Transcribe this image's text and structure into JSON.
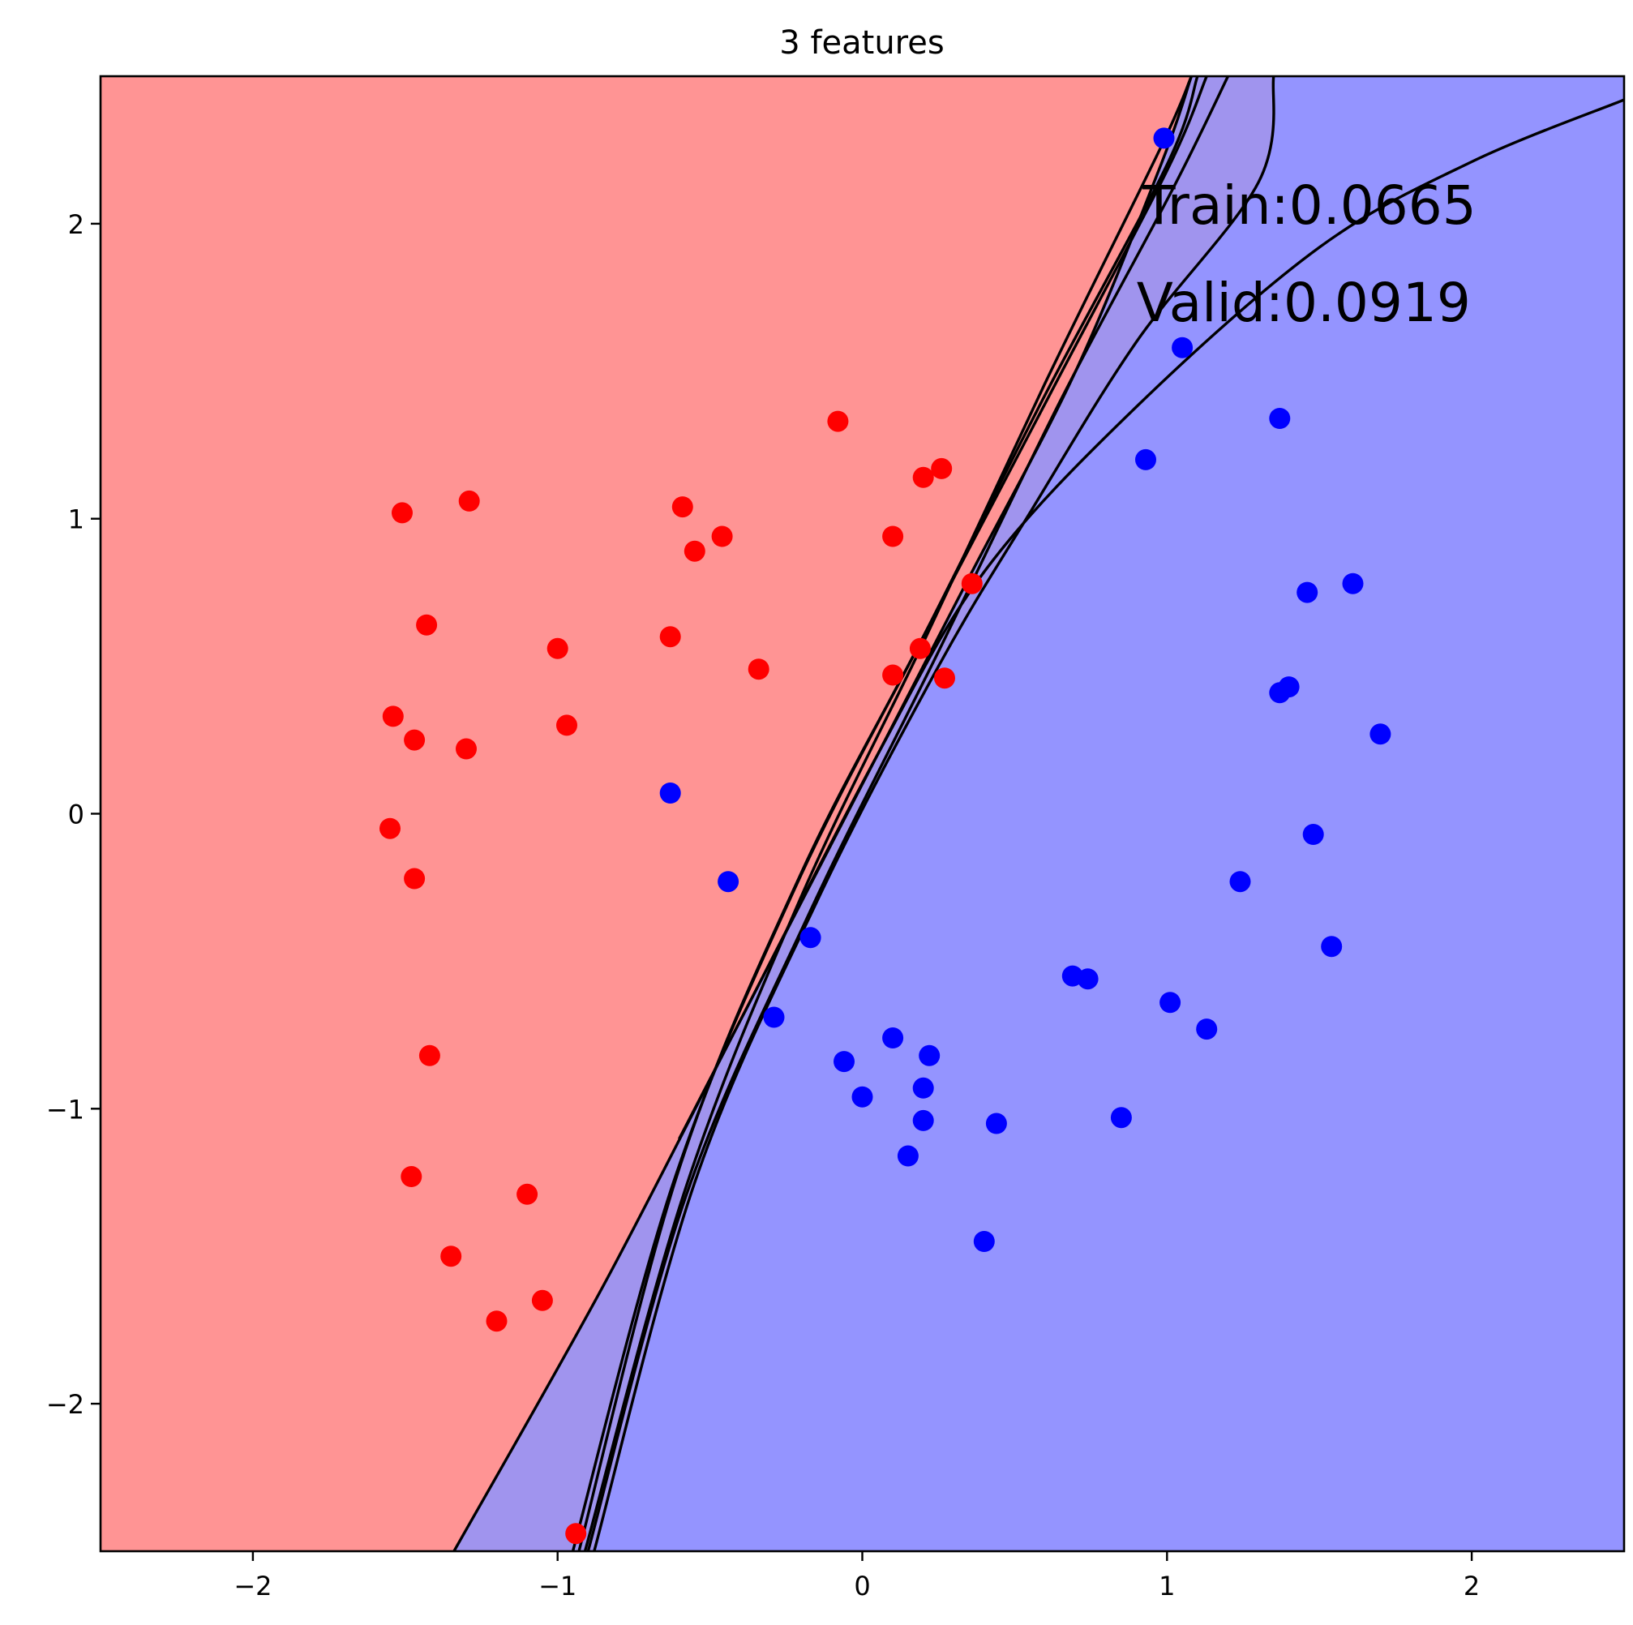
{
  "chart_data": {
    "type": "scatter",
    "title": "3 features",
    "xlabel": "",
    "ylabel": "",
    "xlim": [
      -2.5,
      2.5
    ],
    "ylim": [
      -2.5,
      2.5
    ],
    "grid": false,
    "xticks": [
      -2,
      -1,
      0,
      1,
      2
    ],
    "yticks": [
      -2,
      -1,
      0,
      1,
      2
    ],
    "xtick_labels": [
      "−2",
      "−1",
      "0",
      "1",
      "2"
    ],
    "ytick_labels": [
      "−2",
      "−1",
      "0",
      "1",
      "2"
    ],
    "regions": [
      {
        "name": "red class region",
        "color": "#ff9494"
      },
      {
        "name": "mixed region",
        "color": "#a094ee"
      },
      {
        "name": "blue class region",
        "color": "#9494ff"
      }
    ],
    "annotations": [
      {
        "text": "Train:0.0665",
        "x": 0.92,
        "y": 2.0
      },
      {
        "text": "Valid:0.0919",
        "x": 0.9,
        "y": 1.67
      }
    ],
    "boundaries": [
      {
        "name": "boundary-1",
        "points": [
          [
            -0.93,
            -2.5
          ],
          [
            -0.6,
            -1.2
          ],
          [
            -0.2,
            -0.2
          ],
          [
            0.2,
            0.6
          ],
          [
            0.6,
            1.42
          ],
          [
            1.0,
            2.2
          ],
          [
            1.1,
            2.5
          ]
        ]
      },
      {
        "name": "boundary-2",
        "points": [
          [
            -0.95,
            -2.5
          ],
          [
            -0.62,
            -1.25
          ],
          [
            -0.22,
            -0.25
          ],
          [
            0.2,
            0.6
          ],
          [
            0.62,
            1.43
          ],
          [
            1.0,
            2.18
          ],
          [
            1.13,
            2.5
          ]
        ]
      },
      {
        "name": "boundary-3",
        "points": [
          [
            -0.9,
            -2.5
          ],
          [
            -0.58,
            -1.3
          ],
          [
            -0.18,
            -0.35
          ],
          [
            0.25,
            0.55
          ],
          [
            0.65,
            1.4
          ],
          [
            1.02,
            2.12
          ],
          [
            1.2,
            2.5
          ]
        ]
      },
      {
        "name": "boundary-4",
        "points": [
          [
            -0.91,
            -2.5
          ],
          [
            -0.58,
            -1.27
          ],
          [
            -0.2,
            -0.28
          ],
          [
            0.2,
            0.58
          ],
          [
            0.6,
            1.46
          ],
          [
            0.98,
            2.26
          ],
          [
            1.08,
            2.5
          ]
        ]
      },
      {
        "name": "boundary-5",
        "points": [
          [
            -0.88,
            -2.5
          ],
          [
            -0.55,
            -1.25
          ],
          [
            -0.15,
            -0.3
          ],
          [
            0.25,
            0.5
          ],
          [
            0.55,
            1.02
          ],
          [
            0.9,
            1.6
          ],
          [
            1.3,
            2.14
          ],
          [
            1.35,
            2.5
          ]
        ]
      },
      {
        "name": "boundary-6",
        "points": [
          [
            -0.6,
            -1.1
          ],
          [
            -0.3,
            -0.5
          ],
          [
            0.0,
            0.1
          ],
          [
            0.35,
            0.8
          ],
          [
            0.7,
            1.5
          ],
          [
            0.98,
            2.2
          ],
          [
            1.08,
            2.5
          ]
        ]
      },
      {
        "name": "boundary-7",
        "points": [
          [
            -1.34,
            -2.5
          ],
          [
            -0.85,
            -1.6
          ],
          [
            -0.4,
            -0.7
          ],
          [
            0.05,
            0.2
          ],
          [
            0.4,
            0.82
          ],
          [
            0.9,
            1.38
          ],
          [
            1.5,
            1.92
          ],
          [
            2.0,
            2.21
          ],
          [
            2.5,
            2.42
          ]
        ]
      }
    ],
    "series": [
      {
        "name": "red class",
        "color": "#ff0000",
        "points": [
          [
            -1.51,
            1.02
          ],
          [
            -1.29,
            1.06
          ],
          [
            -1.43,
            0.64
          ],
          [
            -1.54,
            0.33
          ],
          [
            -1.47,
            0.25
          ],
          [
            -1.3,
            0.22
          ],
          [
            -1.55,
            -0.05
          ],
          [
            -1.47,
            -0.22
          ],
          [
            -1.42,
            -0.82
          ],
          [
            -1.48,
            -1.23
          ],
          [
            -1.1,
            -1.29
          ],
          [
            -1.35,
            -1.5
          ],
          [
            -1.2,
            -1.72
          ],
          [
            -1.05,
            -1.65
          ],
          [
            -1.0,
            0.56
          ],
          [
            -0.97,
            0.3
          ],
          [
            -0.63,
            0.6
          ],
          [
            -0.59,
            1.04
          ],
          [
            -0.55,
            0.89
          ],
          [
            -0.46,
            0.94
          ],
          [
            -0.34,
            0.49
          ],
          [
            -0.08,
            1.33
          ],
          [
            0.1,
            0.94
          ],
          [
            0.2,
            1.14
          ],
          [
            0.26,
            1.17
          ],
          [
            0.36,
            0.78
          ],
          [
            0.19,
            0.56
          ],
          [
            0.1,
            0.47
          ],
          [
            0.27,
            0.46
          ],
          [
            -0.94,
            -2.44
          ]
        ]
      },
      {
        "name": "blue class",
        "color": "#0000ff",
        "points": [
          [
            0.99,
            2.29
          ],
          [
            1.05,
            1.58
          ],
          [
            0.93,
            1.2
          ],
          [
            1.37,
            1.34
          ],
          [
            1.46,
            0.75
          ],
          [
            1.61,
            0.78
          ],
          [
            1.37,
            0.41
          ],
          [
            1.4,
            0.43
          ],
          [
            1.7,
            0.27
          ],
          [
            1.48,
            -0.07
          ],
          [
            1.24,
            -0.23
          ],
          [
            1.54,
            -0.45
          ],
          [
            1.01,
            -0.64
          ],
          [
            1.13,
            -0.73
          ],
          [
            0.69,
            -0.55
          ],
          [
            0.74,
            -0.56
          ],
          [
            0.85,
            -1.03
          ],
          [
            0.44,
            -1.05
          ],
          [
            0.4,
            -1.45
          ],
          [
            0.22,
            -0.82
          ],
          [
            0.1,
            -0.76
          ],
          [
            0.2,
            -0.93
          ],
          [
            0.2,
            -1.04
          ],
          [
            0.15,
            -1.16
          ],
          [
            0.0,
            -0.96
          ],
          [
            -0.06,
            -0.84
          ],
          [
            -0.29,
            -0.69
          ],
          [
            -0.17,
            -0.42
          ],
          [
            -0.44,
            -0.23
          ],
          [
            -0.63,
            0.07
          ]
        ]
      }
    ]
  }
}
